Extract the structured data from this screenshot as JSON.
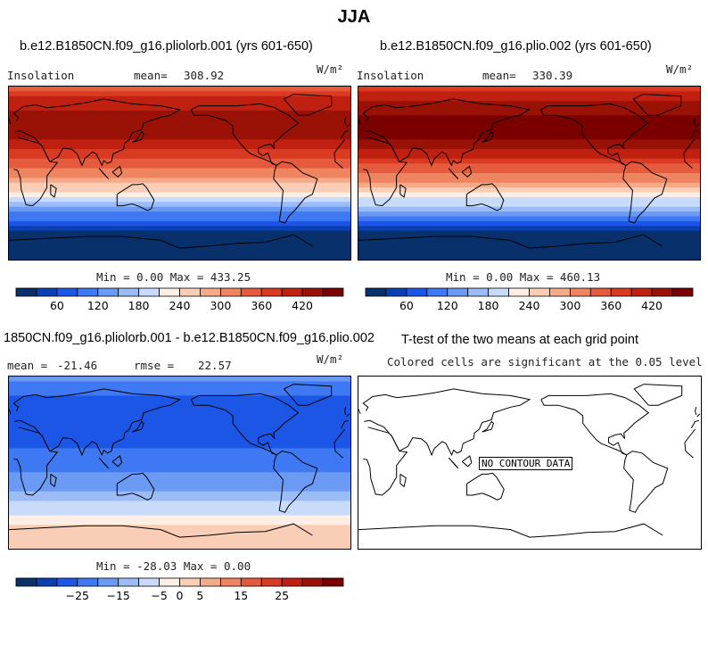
{
  "page_title": "JJA",
  "colors": {
    "diverging": [
      "#08306b",
      "#0a3fb0",
      "#1b56e6",
      "#3e78f2",
      "#6b9af5",
      "#9cbcf8",
      "#c9dbfb",
      "#fdeee6",
      "#f9cdb6",
      "#f5ab88",
      "#ef8460",
      "#e65b3d",
      "#d83a22",
      "#c0200f",
      "#9a1106",
      "#7a0000"
    ]
  },
  "chart_data": [
    {
      "type": "heatmap",
      "title": "b.e12.B1850CN.f09_g16.pliolorb.001 (yrs 601-650)",
      "left_label": "Insolation",
      "mean_label": "mean=",
      "mean_value": "308.92",
      "units": "W/m²",
      "min_max_label": "Min =   0.00 Max = 433.25",
      "min": 0.0,
      "max": 433.25,
      "colorbar_ticks": [
        "60",
        "120",
        "180",
        "240",
        "300",
        "360",
        "420"
      ],
      "zonal_bands": [
        350,
        375,
        395,
        405,
        415,
        420,
        425,
        428,
        430,
        428,
        422,
        412,
        400,
        385,
        370,
        352,
        335,
        318,
        300,
        282,
        262,
        240,
        218,
        195,
        170,
        145,
        118,
        92,
        66,
        40,
        18,
        5,
        0,
        0,
        0,
        0
      ]
    },
    {
      "type": "heatmap",
      "title": "b.e12.B1850CN.f09_g16.plio.002 (yrs 601-650)",
      "left_label": "Insolation",
      "mean_label": "mean=",
      "mean_value": "330.39",
      "units": "W/m²",
      "min_max_label": "Min =   0.00 Max = 460.13",
      "min": 0.0,
      "max": 460.13,
      "colorbar_ticks": [
        "60",
        "120",
        "180",
        "240",
        "300",
        "360",
        "420"
      ],
      "zonal_bands": [
        370,
        395,
        415,
        428,
        440,
        448,
        455,
        458,
        460,
        458,
        452,
        440,
        428,
        412,
        395,
        376,
        358,
        340,
        320,
        300,
        278,
        255,
        232,
        208,
        182,
        155,
        126,
        98,
        70,
        42,
        20,
        5,
        0,
        0,
        0,
        0
      ]
    },
    {
      "type": "heatmap",
      "title": "1850CN.f09_g16.pliolorb.001 - b.e12.B1850CN.f09_g16.plio.002",
      "mean_label": "mean =",
      "mean_value": "-21.46",
      "rmse_label": "rmse =",
      "rmse_value": "22.57",
      "units": "W/m²",
      "min_max_label": "Min = -28.03 Max =   0.00",
      "min": -28.03,
      "max": 0.0,
      "colorbar_ticks": [
        "-25",
        "-15",
        "-5",
        "0",
        "5",
        "15",
        "25"
      ],
      "zonal_bands": [
        -20,
        -22,
        -24,
        -25,
        -26,
        -27,
        -28,
        -28,
        -28,
        -28,
        -28,
        -27,
        -27,
        -26,
        -26,
        -25,
        -24,
        -23,
        -22,
        -21,
        -20,
        -19,
        -17,
        -16,
        -14,
        -12,
        -10,
        -8,
        -6,
        -3,
        -1,
        0,
        0,
        0,
        0,
        0
      ]
    },
    {
      "type": "heatmap",
      "title": "T-test of the two means at each grid point",
      "subtitle": "Colored cells are significant at the 0.05 level",
      "no_data_label": "NO CONTOUR DATA"
    }
  ]
}
